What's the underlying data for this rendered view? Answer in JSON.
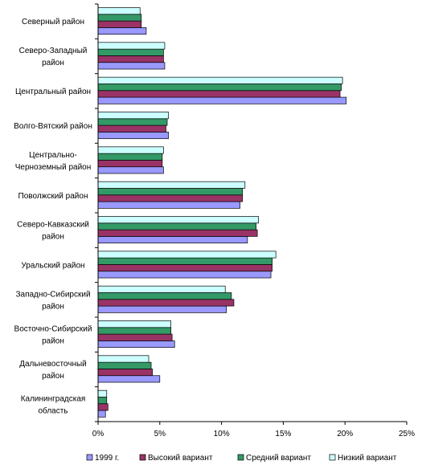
{
  "chart_data": {
    "type": "bar",
    "orientation": "horizontal",
    "categories": [
      "Северный район",
      "Северо-Западный район",
      "Центральный район",
      "Волго-Вятский район",
      "Центрально-Черноземный район",
      "Поволжский район",
      "Северо-Кавказский район",
      "Уральский район",
      "Западно-Сибирский район",
      "Восточно-Сибирский район",
      "Дальневосточный район",
      "Калининградская область"
    ],
    "category_lines": [
      [
        "Северный район"
      ],
      [
        "Северо-Западный",
        "район"
      ],
      [
        "Центральный район"
      ],
      [
        "Волго-Вятский район"
      ],
      [
        "Центрально-",
        "Черноземный район"
      ],
      [
        "Поволжский район"
      ],
      [
        "Северо-Кавказский",
        "район"
      ],
      [
        "Уральский район"
      ],
      [
        "Западно-Сибирский",
        "район"
      ],
      [
        "Восточно-Сибирский",
        "район"
      ],
      [
        "Дальневосточный",
        "район"
      ],
      [
        "Калининградская",
        "область"
      ]
    ],
    "series": [
      {
        "name": "1999 г.",
        "color": "#9999ff",
        "values": [
          3.9,
          5.4,
          20.1,
          5.7,
          5.3,
          11.5,
          12.1,
          14.0,
          10.4,
          6.2,
          5.0,
          0.6
        ]
      },
      {
        "name": "Высокий вариант",
        "color": "#993366",
        "values": [
          3.5,
          5.3,
          19.6,
          5.5,
          5.2,
          11.7,
          12.9,
          14.1,
          11.0,
          6.0,
          4.4,
          0.8
        ]
      },
      {
        "name": "Средний вариант",
        "color": "#339966",
        "values": [
          3.5,
          5.3,
          19.7,
          5.6,
          5.2,
          11.7,
          12.8,
          14.1,
          10.8,
          5.9,
          4.3,
          0.7
        ]
      },
      {
        "name": "Низкий вариант",
        "color": "#ccffff",
        "values": [
          3.4,
          5.4,
          19.8,
          5.7,
          5.3,
          11.9,
          13.0,
          14.4,
          10.3,
          5.9,
          4.1,
          0.7
        ]
      }
    ],
    "xlim": [
      0,
      25
    ],
    "xticks": [
      0,
      5,
      10,
      15,
      20,
      25
    ],
    "xtick_labels": [
      "0%",
      "5%",
      "10%",
      "15%",
      "20%",
      "25%"
    ],
    "grid": false,
    "legend_position": "bottom"
  }
}
